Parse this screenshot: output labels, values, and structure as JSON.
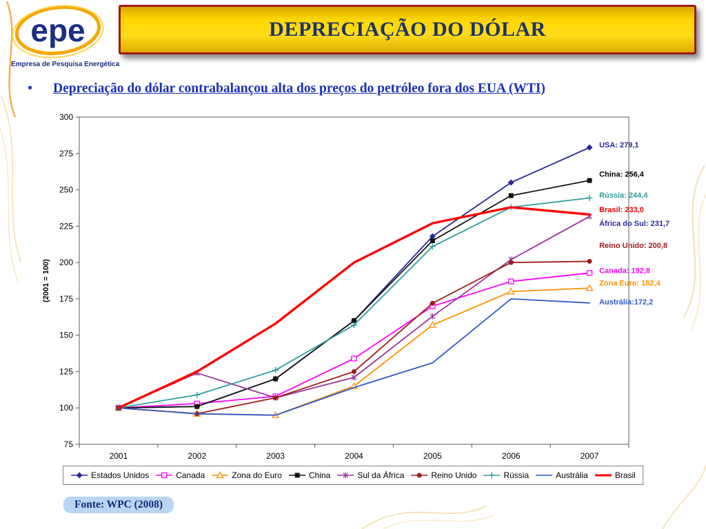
{
  "slide": {
    "title": "DEPRECIAÇÃO DO DÓLAR",
    "logo": {
      "text": "epe",
      "subtitle": "Empresa de Pesquisa Energética"
    },
    "bullet_char": "•",
    "bullet_text": "Depreciação do dólar contrabalançou alta dos preços do petróleo fora dos EUA (WTI)",
    "fonte": "Fonte: WPC (2008)"
  },
  "chart_data": {
    "type": "line",
    "title": "",
    "xlabel": "",
    "ylabel": "(2001 = 100)",
    "categories": [
      "2001",
      "2002",
      "2003",
      "2004",
      "2005",
      "2006",
      "2007"
    ],
    "ylim": [
      75,
      300
    ],
    "yticks": [
      75,
      100,
      125,
      150,
      175,
      200,
      225,
      250,
      275,
      300
    ],
    "grid": false,
    "legend_position": "bottom",
    "series": [
      {
        "name": "Estados Unidos",
        "color": "#2A2A9C",
        "marker": "diamond",
        "width": 1.8,
        "values": [
          100,
          101,
          120,
          160,
          218,
          255,
          279.1
        ],
        "end_label": "USA: 279,1",
        "label_color": "#2A2A9C",
        "label_y": 281
      },
      {
        "name": "Canada",
        "color": "#FF00FF",
        "marker": "square-open",
        "width": 1.8,
        "values": [
          100,
          103,
          108,
          134,
          170,
          187,
          192.8
        ],
        "end_label": "Canada: 192,8",
        "label_color": "#FF00FF",
        "label_y": 194.5
      },
      {
        "name": "Zona do Euro",
        "color": "#FF9100",
        "marker": "triangle-open",
        "width": 1.8,
        "values": [
          100,
          96,
          95,
          115,
          157,
          180,
          182.4
        ],
        "end_label": "Zona Euro: 182,4",
        "label_color": "#FF9100",
        "label_y": 186
      },
      {
        "name": "China",
        "color": "#141414",
        "marker": "square",
        "width": 1.8,
        "values": [
          100,
          101,
          120,
          160,
          215,
          246,
          256.4
        ],
        "end_label": "China: 256,4",
        "label_color": "#000000",
        "label_y": 261
      },
      {
        "name": "Sul da África",
        "color": "#993399",
        "marker": "star",
        "width": 1.8,
        "values": [
          100,
          124,
          107,
          121,
          163,
          202,
          231.7
        ],
        "end_label": "África do Sul: 231,7",
        "label_color": "#2A2A9C",
        "label_y": 227
      },
      {
        "name": "Reino Unido",
        "color": "#9E1B1B",
        "marker": "circle",
        "width": 1.8,
        "values": [
          100,
          96,
          107,
          125,
          172,
          200,
          200.8
        ],
        "end_label": "Reino Unido: 200,8",
        "label_color": "#9E1B1B",
        "label_y": 212
      },
      {
        "name": "Rússia",
        "color": "#2F9E9E",
        "marker": "plus",
        "width": 1.8,
        "values": [
          100,
          109,
          126,
          157,
          211,
          238,
          244.4
        ],
        "end_label": "Rússia: 244,4",
        "label_color": "#2F9E9E",
        "label_y": 246.5
      },
      {
        "name": "Austrália",
        "color": "#3059C7",
        "marker": "none",
        "width": 1.8,
        "values": [
          100,
          96,
          95,
          114,
          131,
          175,
          172.2
        ],
        "end_label": "Austrália:172,2",
        "label_color": "#3059C7",
        "label_y": 173
      },
      {
        "name": "Brasil",
        "color": "#FF0000",
        "marker": "none",
        "width": 3.4,
        "values": [
          100,
          125,
          158,
          200,
          227,
          238,
          233.0
        ],
        "end_label": "Brasil: 233,0",
        "label_color": "#FF0000",
        "label_y": 236.5
      }
    ]
  }
}
